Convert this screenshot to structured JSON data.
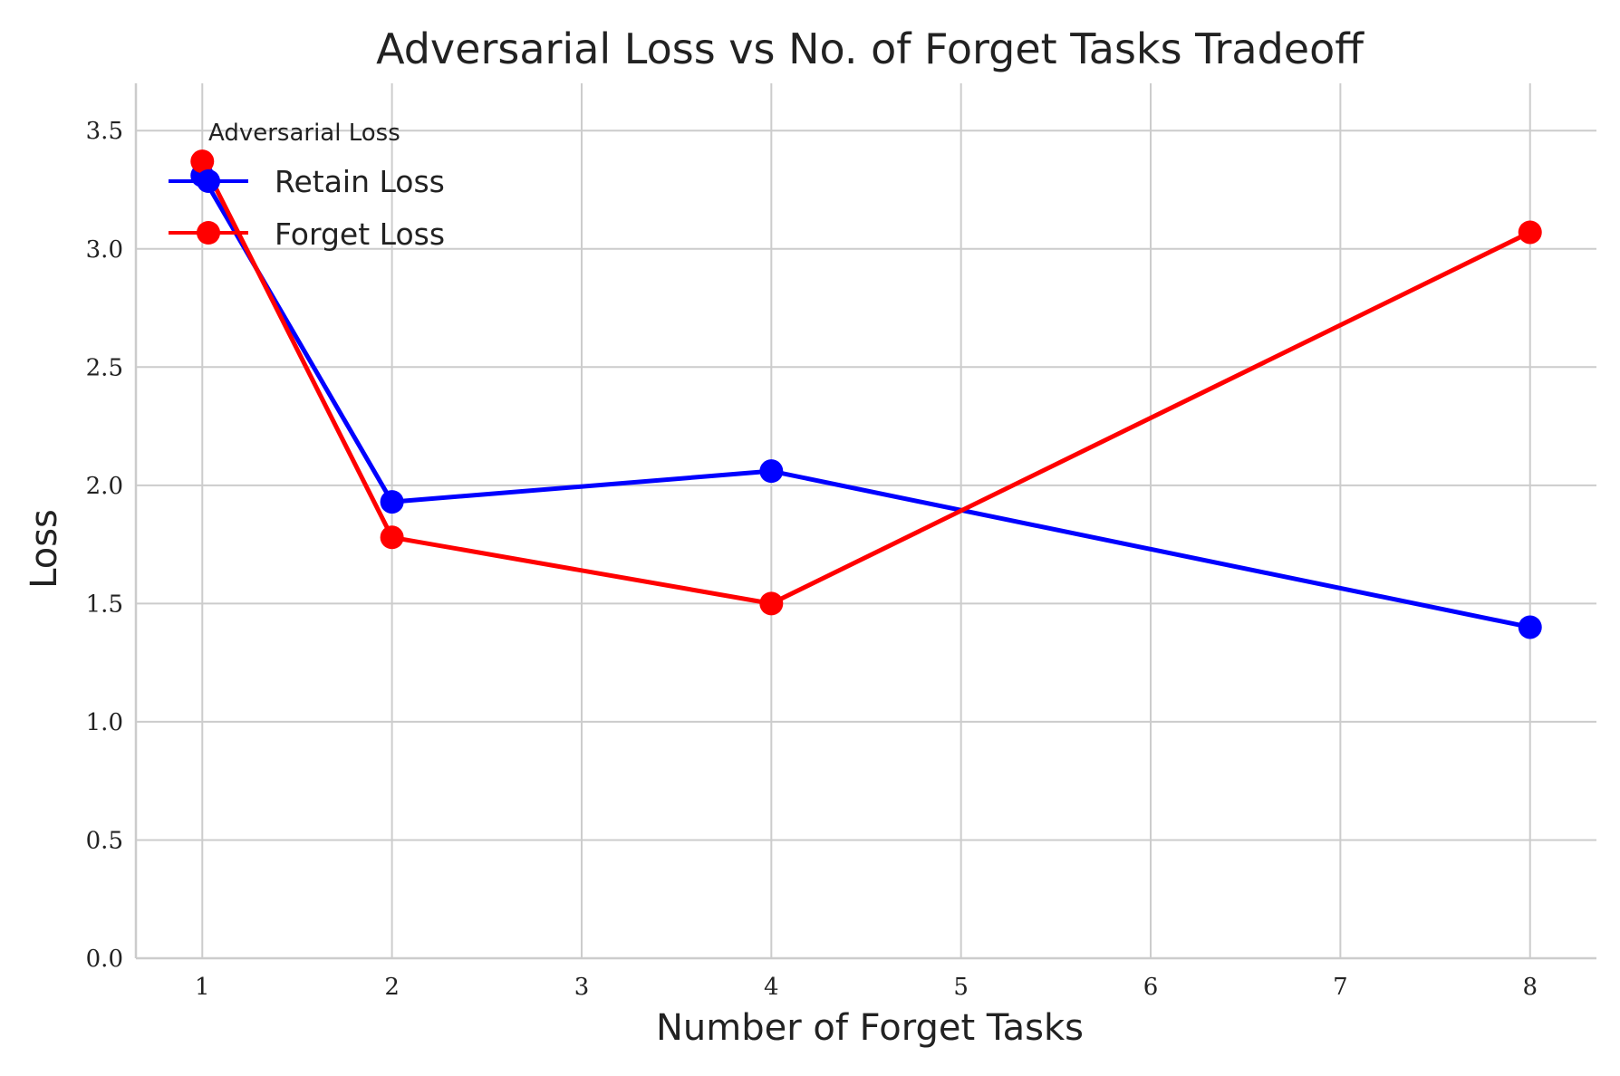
{
  "chart_data": {
    "type": "line",
    "title": "Adversarial Loss vs No. of Forget Tasks Tradeoff",
    "xlabel": "Number of Forget Tasks",
    "ylabel": "Loss",
    "x": [
      1,
      2,
      4,
      8
    ],
    "xticks": [
      1,
      2,
      3,
      4,
      5,
      6,
      7,
      8
    ],
    "xtick_labels": [
      "1",
      "2",
      "3",
      "4",
      "5",
      "6",
      "7",
      "8"
    ],
    "yticks": [
      0.0,
      0.5,
      1.0,
      1.5,
      2.0,
      2.5,
      3.0,
      3.5
    ],
    "ytick_labels": [
      "0.0",
      "0.5",
      "1.0",
      "1.5",
      "2.0",
      "2.5",
      "3.0",
      "3.5"
    ],
    "xlim": [
      0.65,
      8.35
    ],
    "ylim": [
      0,
      3.7
    ],
    "grid": true,
    "legend": {
      "title": "Adversarial Loss",
      "placement": "top-left"
    },
    "series": [
      {
        "name": "Retain Loss",
        "color": "#0000ff",
        "values": [
          3.31,
          1.93,
          2.06,
          1.4
        ]
      },
      {
        "name": "Forget Loss",
        "color": "#ff0000",
        "values": [
          3.37,
          1.78,
          1.5,
          3.07
        ]
      }
    ]
  }
}
